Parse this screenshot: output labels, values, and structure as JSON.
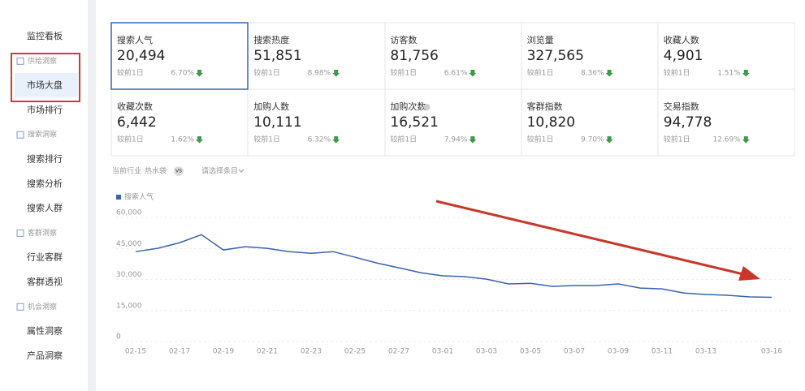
{
  "sidebar": {
    "top": "监控看板",
    "sections": [
      {
        "title": "供给洞察",
        "items": [
          "市场大盘",
          "市场排行"
        ]
      },
      {
        "title": "搜索洞察",
        "items": [
          "搜索排行",
          "搜索分析",
          "搜索人群"
        ]
      },
      {
        "title": "客群洞察",
        "items": [
          "行业客群",
          "客群透视"
        ]
      },
      {
        "title": "机会洞察",
        "items": [
          "属性洞察",
          "产品洞察"
        ]
      }
    ]
  },
  "metrics": {
    "rows": [
      [
        {
          "label": "搜索人气",
          "value": "20,494",
          "compare": "较前1日",
          "change": "6.70%"
        },
        {
          "label": "搜索热度",
          "value": "51,851",
          "compare": "较前1日",
          "change": "8.98%"
        },
        {
          "label": "访客数",
          "value": "81,756",
          "compare": "较前1日",
          "change": "6.61%"
        },
        {
          "label": "浏览量",
          "value": "327,565",
          "compare": "较前1日",
          "change": "8.36%"
        },
        {
          "label": "收藏人数",
          "value": "4,901",
          "compare": "较前1日",
          "change": "1.51%"
        }
      ],
      [
        {
          "label": "收藏次数",
          "value": "6,442",
          "compare": "较前1日",
          "change": "1.62%"
        },
        {
          "label": "加购人数",
          "value": "10,111",
          "compare": "较前1日",
          "change": "6.32%"
        },
        {
          "label": "加购次数",
          "value": "16,521",
          "compare": "较前1日",
          "change": "7.94%"
        },
        {
          "label": "客群指数",
          "value": "10,820",
          "compare": "较前1日",
          "change": "9.70%"
        },
        {
          "label": "交易指数",
          "value": "94,778",
          "compare": "较前1日",
          "change": "12.69%"
        }
      ]
    ]
  },
  "filter": {
    "industry_label": "当前行业",
    "industry": "热水袋",
    "vs": "VS",
    "select": "请选择条目"
  },
  "chart": {
    "type": "line",
    "categories": [
      "02-15",
      null,
      "02-17",
      null,
      "02-19",
      null,
      "02-21",
      null,
      "02-23",
      null,
      "02-25",
      null,
      "02-27",
      null,
      "03-01",
      null,
      "03-03",
      null,
      "03-05",
      null,
      "03-07",
      null,
      "03-09",
      null,
      "03-11",
      null,
      "03-13",
      null,
      null,
      "03-16"
    ],
    "series": [
      {
        "name": "搜索人气",
        "color": "#3a62ad",
        "values": [
          41100,
          42700,
          45400,
          49300,
          41900,
          43500,
          42700,
          41100,
          40300,
          41100,
          38400,
          35600,
          33300,
          30900,
          29400,
          29000,
          27800,
          25500,
          25800,
          24300,
          24700,
          24700,
          25500,
          23500,
          23100,
          21100,
          20400,
          20000,
          19200,
          19000
        ]
      }
    ],
    "ylim": [
      0,
      60000
    ],
    "yticks": [
      0,
      {
        "value": 15000,
        "label": "15,000"
      },
      {
        "value": 30000,
        "label": "30,000"
      },
      {
        "value": 45000,
        "label": "45,000"
      },
      {
        "value": 60000,
        "label": "60,000"
      }
    ],
    "grid": true
  }
}
